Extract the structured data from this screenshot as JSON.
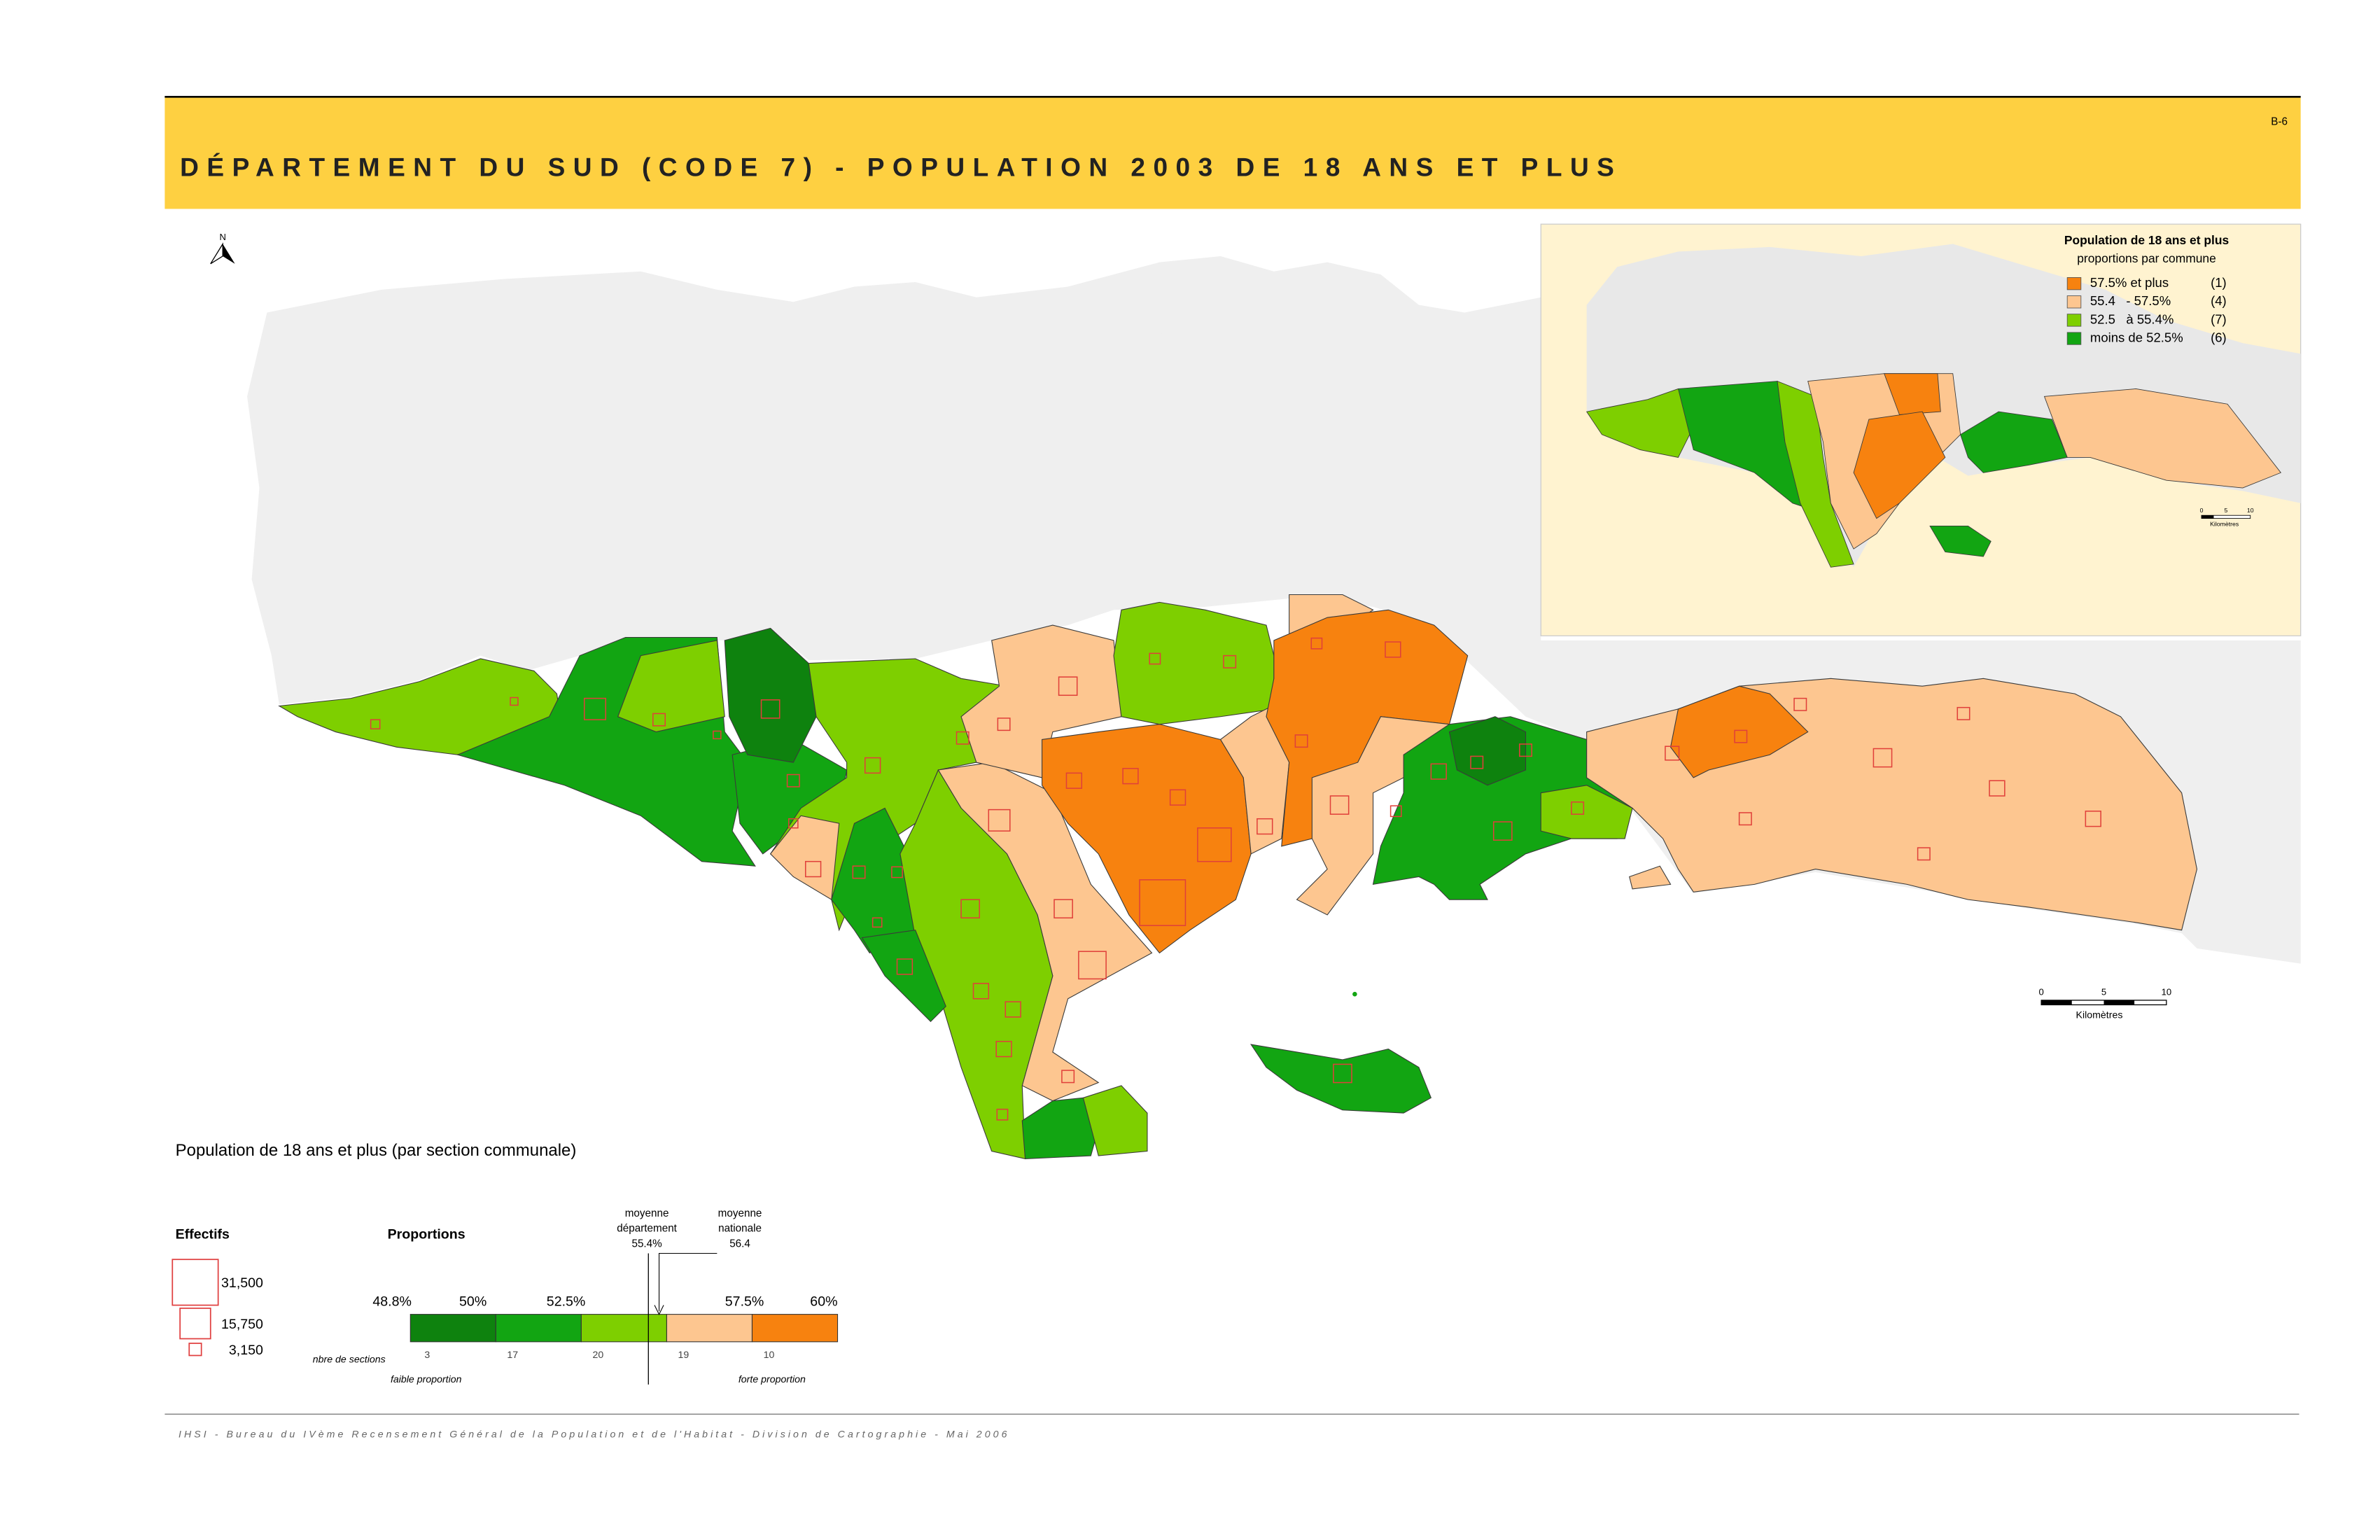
{
  "header": {
    "code": "B-6",
    "title": "DÉPARTEMENT DU SUD (CODE 7) - POPULATION 2003 DE 18 ANS ET PLUS"
  },
  "north": "N",
  "inset": {
    "title": "Population de 18 ans et plus",
    "subtitle": "proportions par commune",
    "legend": [
      {
        "label": "57.5% et plus",
        "count": "(1)",
        "color": "#f7820f"
      },
      {
        "label": "55.4   - 57.5%",
        "count": "(4)",
        "color": "#fdc690"
      },
      {
        "label": "52.5   à 55.4%",
        "count": "(7)",
        "color": "#7ecf00"
      },
      {
        "label": "moins de 52.5%",
        "count": "(6)",
        "color": "#12a512"
      }
    ],
    "scale": {
      "ticks": [
        "0",
        "5",
        "10"
      ],
      "unit": "Kilomètres"
    }
  },
  "scale": {
    "ticks": [
      "0",
      "5",
      "10"
    ],
    "unit": "Kilomètres"
  },
  "legend": {
    "title": "Population de 18 ans et plus (par section communale)",
    "effectifs": {
      "title": "Effectifs",
      "items": [
        "31,500",
        "15,750",
        "3,150"
      ]
    },
    "proportions": {
      "title": "Proportions",
      "breaks": [
        "48.8%",
        "50%",
        "52.5%",
        "57.5%",
        "60%"
      ],
      "classes": [
        {
          "count": "3",
          "color": "#0e820e"
        },
        {
          "count": "17",
          "color": "#12a512"
        },
        {
          "count": "20",
          "color": "#7ecf00"
        },
        {
          "count": "19",
          "color": "#fdc690"
        },
        {
          "count": "10",
          "color": "#f7820f"
        }
      ],
      "row_label": "nbre de sections",
      "low": "faible proportion",
      "high": "forte proportion",
      "dept_mean": [
        "moyenne",
        "département",
        "55.4%"
      ],
      "national_mean": [
        "moyenne",
        "nationale",
        "56.4"
      ]
    }
  },
  "footer": "IHSI - Bureau du IVème Recensement Général de la Population et de l'Habitat - Division de Cartographie - Mai 2006"
}
